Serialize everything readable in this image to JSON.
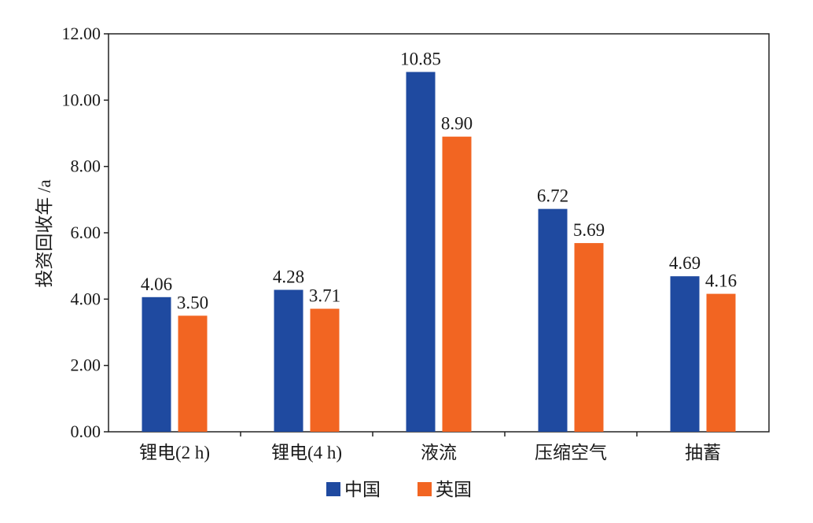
{
  "chart_data": {
    "type": "bar",
    "title": "",
    "xlabel": "",
    "ylabel": "投资回收年 /a",
    "ylim": [
      0,
      12
    ],
    "yticks": [
      0,
      2,
      4,
      6,
      8,
      10,
      12
    ],
    "ytick_labels": [
      "0.00",
      "2.00",
      "4.00",
      "6.00",
      "8.00",
      "10.00",
      "12.00"
    ],
    "categories": [
      "锂电(2 h)",
      "锂电(4 h)",
      "液流",
      "压缩空气",
      "抽蓄"
    ],
    "series": [
      {
        "name": "中国",
        "color": "#1f4aa0",
        "values": [
          4.06,
          4.28,
          10.85,
          6.72,
          4.69
        ],
        "labels": [
          "4.06",
          "4.28",
          "10.85",
          "6.72",
          "4.69"
        ]
      },
      {
        "name": "英国",
        "color": "#f26522",
        "values": [
          3.5,
          3.71,
          8.9,
          5.69,
          4.16
        ],
        "labels": [
          "3.50",
          "3.71",
          "8.90",
          "5.69",
          "4.16"
        ]
      }
    ],
    "legend_position": "bottom-center",
    "grid": false
  }
}
